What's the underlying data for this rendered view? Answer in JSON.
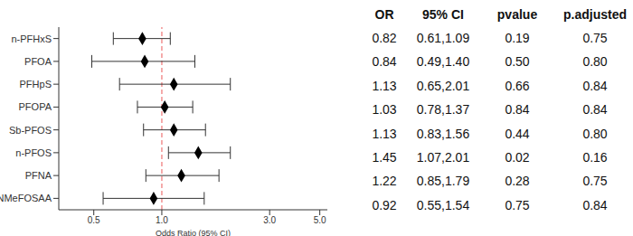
{
  "chart_data": {
    "type": "forest",
    "categories": [
      "n-PFHxS",
      "PFOA",
      "PFHpS",
      "PFOPA",
      "Sb-PFOS",
      "n-PFOS",
      "PFNA",
      "NMeFOSAA"
    ],
    "values": [
      0.82,
      0.84,
      1.13,
      1.03,
      1.13,
      1.45,
      1.22,
      0.92
    ],
    "ci_lower": [
      0.61,
      0.49,
      0.65,
      0.78,
      0.83,
      1.07,
      0.85,
      0.55
    ],
    "ci_upper": [
      1.09,
      1.4,
      2.01,
      1.37,
      1.56,
      2.01,
      1.79,
      1.54
    ],
    "color": "#000000",
    "marker": "diamond",
    "xlabel": "Odds Ratio (95% CI)",
    "log": "x",
    "xlim": [
      0.35,
      5.4
    ],
    "xticks": [
      0.5,
      {
        "value": 1,
        "label": "1.0"
      },
      {
        "value": 3,
        "label": "3.0"
      },
      {
        "value": 5,
        "label": "5.0"
      }
    ],
    "reference_line": {
      "value": 1,
      "color": "#f08080",
      "line_style": "dashed"
    }
  },
  "table": {
    "columns": [
      "OR",
      "95% CI",
      "pvalue",
      "p.adjusted"
    ],
    "rows": [
      [
        "0.82",
        "0.61,1.09",
        "0.19",
        "0.75"
      ],
      [
        "0.84",
        "0.49,1.40",
        "0.50",
        "0.80"
      ],
      [
        "1.13",
        "0.65,2.01",
        "0.66",
        "0.84"
      ],
      [
        "1.03",
        "0.78,1.37",
        "0.84",
        "0.84"
      ],
      [
        "1.13",
        "0.83,1.56",
        "0.44",
        "0.80"
      ],
      [
        "1.45",
        "1.07,2.01",
        "0.02",
        "0.16"
      ],
      [
        "1.22",
        "0.85,1.79",
        "0.28",
        "0.75"
      ],
      [
        "0.92",
        "0.55,1.54",
        "0.75",
        "0.84"
      ]
    ]
  }
}
